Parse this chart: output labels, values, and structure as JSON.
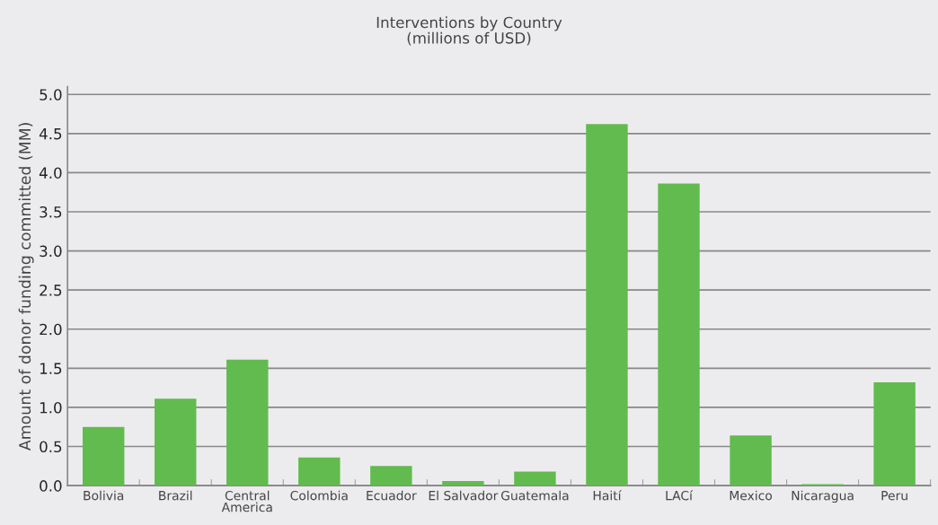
{
  "chart_data": {
    "type": "bar",
    "title": "Interventions by Country\n(millions of USD)",
    "ylabel": "Amount of donor funding committed (MM)",
    "categories": [
      "Bolivia",
      "Brazil",
      "Central\nAmerica",
      "Colombia",
      "Ecuador",
      "El Salvador",
      "Guatemala",
      "Haití",
      "LACí",
      "Mexico",
      "Nicaragua",
      "Peru"
    ],
    "values": [
      0.75,
      1.11,
      1.61,
      0.36,
      0.25,
      0.06,
      0.18,
      4.62,
      3.86,
      0.64,
      0.02,
      1.32
    ],
    "color": "#62bb4e",
    "ylim": [
      0,
      5.1
    ],
    "yticks": [
      {
        "value": 0,
        "label": "0.0"
      },
      0.5,
      {
        "value": 1,
        "label": "1.0"
      },
      1.5,
      {
        "value": 2,
        "label": "2.0"
      },
      2.5,
      {
        "value": 3,
        "label": "3.0"
      },
      3.5,
      {
        "value": 4,
        "label": "4.0"
      },
      4.5,
      {
        "value": 5,
        "label": "5.0"
      }
    ],
    "grid": "y"
  }
}
